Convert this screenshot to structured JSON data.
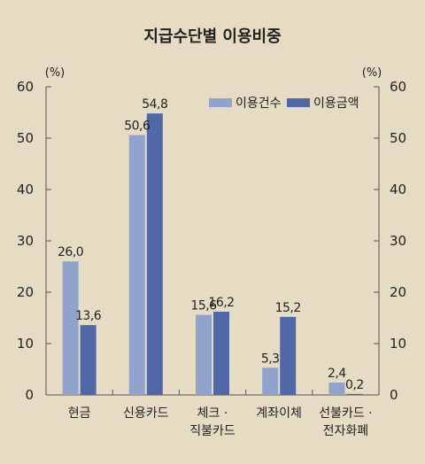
{
  "chart_data": {
    "type": "bar",
    "title": "지급수단별 이용비중",
    "unit_left": "(%)",
    "unit_right": "(%)",
    "ylim": [
      0,
      60
    ],
    "yticks": [
      "0",
      "10",
      "20",
      "30",
      "40",
      "50",
      "60"
    ],
    "grid": false,
    "legend_position": "top-right",
    "categories": [
      [
        "현금"
      ],
      [
        "신용카드"
      ],
      [
        "체크 ·",
        "직불카드"
      ],
      [
        "계좌이체"
      ],
      [
        "선불카드 ·",
        "전자화폐"
      ]
    ],
    "series": [
      {
        "name": "이용건수",
        "color": "#8fa3cd",
        "values": [
          26.0,
          50.6,
          15.6,
          5.3,
          2.4
        ],
        "labels": [
          "26,0",
          "50,6",
          "15,6",
          "5,3",
          "2,4"
        ]
      },
      {
        "name": "이용금액",
        "color": "#5068a8",
        "values": [
          13.6,
          54.8,
          16.2,
          15.2,
          0.2
        ],
        "labels": [
          "13,6",
          "54,8",
          "16,2",
          "15,2",
          "0,2"
        ]
      }
    ]
  }
}
